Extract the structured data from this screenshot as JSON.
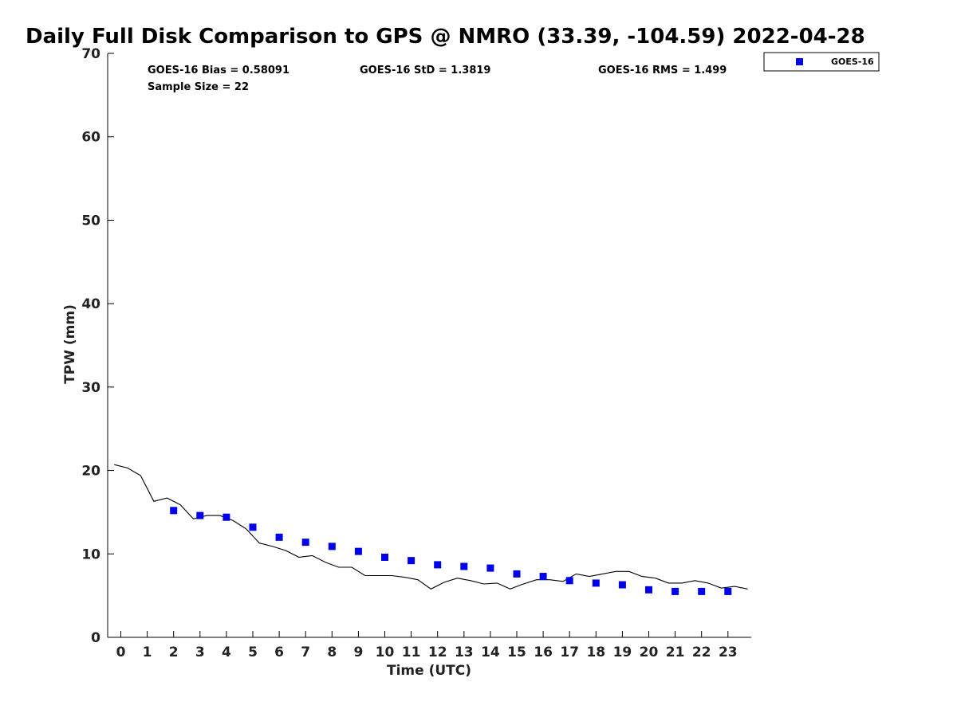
{
  "chart_data": {
    "type": "scatter",
    "title": "Daily Full Disk Comparison to GPS @ NMRO (33.39, -104.59) 2022-04-28",
    "xlabel": "Time (UTC)",
    "ylabel": "TPW (mm)",
    "xlim": [
      -0.5,
      23.75
    ],
    "ylim": [
      0,
      70
    ],
    "x_ticks": [
      0,
      1,
      2,
      3,
      4,
      5,
      6,
      7,
      8,
      9,
      10,
      11,
      12,
      13,
      14,
      15,
      16,
      17,
      18,
      19,
      20,
      21,
      22,
      23
    ],
    "y_ticks": [
      0,
      10,
      20,
      30,
      40,
      50,
      60,
      70
    ],
    "grid": false,
    "legend_position": "top-right (outside plot)",
    "stats": {
      "bias": "GOES-16 Bias = 0.58091",
      "std": "GOES-16 StD = 1.3819",
      "rms": "GOES-16 RMS = 1.499",
      "sample_size": "Sample Size = 22"
    },
    "series": [
      {
        "name": "GOES-16",
        "marker": "square",
        "color": "#0000ee",
        "x": [
          2,
          3,
          4,
          5,
          6,
          7,
          8,
          9,
          10,
          11,
          12,
          13,
          14,
          15,
          16,
          17,
          18,
          19,
          20,
          21,
          22,
          23
        ],
        "y": [
          15.2,
          14.6,
          14.4,
          13.2,
          12.0,
          11.4,
          10.9,
          10.3,
          9.6,
          9.2,
          8.7,
          8.5,
          8.3,
          7.6,
          7.3,
          6.8,
          6.5,
          6.3,
          5.7,
          5.5,
          5.5,
          5.5
        ]
      },
      {
        "marker": "line",
        "color": "#000000",
        "x": [
          -0.25,
          0.25,
          0.75,
          1.25,
          1.75,
          2.25,
          2.75,
          3.25,
          3.75,
          4.25,
          4.75,
          5.25,
          5.75,
          6.25,
          6.75,
          7.25,
          7.75,
          8.25,
          8.75,
          9.25,
          9.75,
          10.25,
          10.75,
          11.25,
          11.75,
          12.25,
          12.75,
          13.25,
          13.75,
          14.25,
          14.75,
          15.25,
          15.75,
          16.25,
          16.75,
          17.25,
          17.75,
          18.25,
          18.75,
          19.25,
          19.75,
          20.25,
          20.75,
          21.25,
          21.75,
          22.25,
          22.75,
          23.25,
          23.75
        ],
        "y": [
          20.7,
          20.3,
          19.4,
          16.3,
          16.7,
          15.9,
          14.2,
          14.6,
          14.6,
          14.0,
          13.0,
          11.3,
          10.9,
          10.4,
          9.6,
          9.8,
          9.0,
          8.4,
          8.4,
          7.4,
          7.4,
          7.4,
          7.2,
          6.9,
          5.8,
          6.6,
          7.1,
          6.8,
          6.4,
          6.5,
          5.8,
          6.4,
          6.9,
          6.9,
          6.7,
          7.6,
          7.3,
          7.6,
          7.9,
          7.9,
          7.3,
          7.1,
          6.5,
          6.5,
          6.8,
          6.5,
          5.9,
          6.1,
          5.8
        ]
      }
    ]
  }
}
